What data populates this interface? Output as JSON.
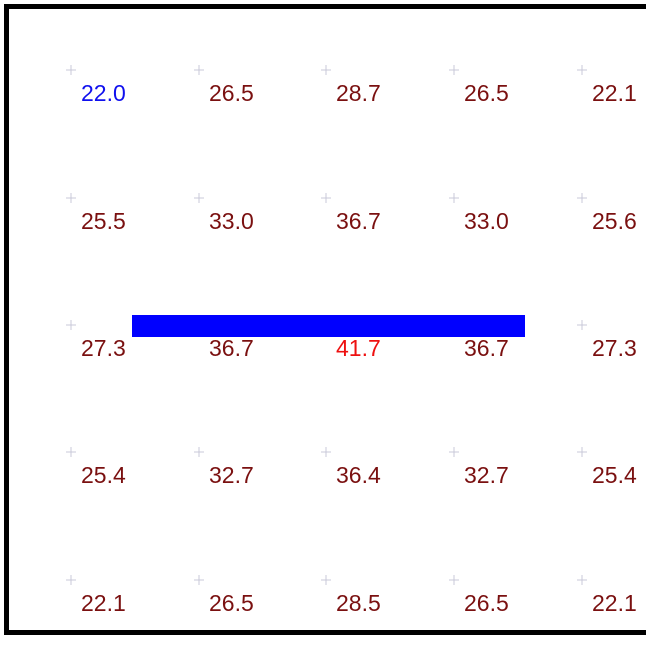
{
  "chart_data": {
    "type": "heatmap",
    "rows": 5,
    "cols": 5,
    "values": [
      [
        "22.0",
        "26.5",
        "28.7",
        "26.5",
        "22.1"
      ],
      [
        "25.5",
        "33.0",
        "36.7",
        "33.0",
        "25.6"
      ],
      [
        "27.3",
        "36.7",
        "41.7",
        "36.7",
        "27.3"
      ],
      [
        "25.4",
        "32.7",
        "36.4",
        "32.7",
        "25.4"
      ],
      [
        "22.1",
        "26.5",
        "28.5",
        "26.5",
        "22.1"
      ]
    ],
    "min_cell": [
      0,
      0
    ],
    "max_cell": [
      2,
      2
    ],
    "colors": {
      "normal": "#7a1010",
      "min": "#1010ee",
      "max": "#ee1010",
      "bar": "#0000ff",
      "marker": "#c8c8d8",
      "frame": "#000000"
    },
    "bar": {
      "row": 2,
      "from_col": 0,
      "to_col": 3
    },
    "grid_markers": true
  }
}
